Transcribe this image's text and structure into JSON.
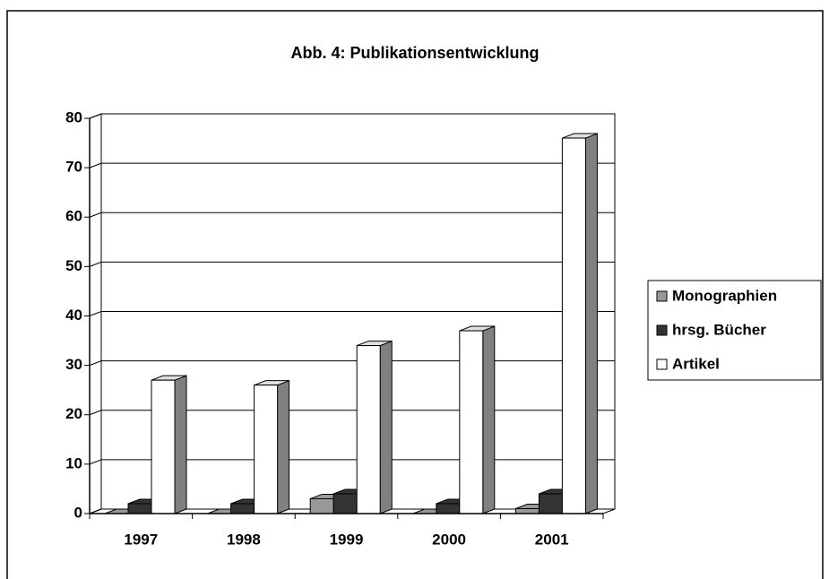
{
  "chart_data": {
    "type": "bar3d",
    "title": "Abb. 4: Publikationsentwicklung",
    "categories": [
      "1997",
      "1998",
      "1999",
      "2000",
      "2001"
    ],
    "series": [
      {
        "name": "Monographien",
        "color": "#999999",
        "values": [
          0,
          0,
          3,
          0,
          1
        ]
      },
      {
        "name": "hrsg. Bücher",
        "color": "#333333",
        "values": [
          2,
          2,
          4,
          2,
          4
        ]
      },
      {
        "name": "Artikel",
        "color": "#ffffff",
        "values": [
          27,
          26,
          34,
          37,
          76
        ]
      }
    ],
    "ylim": [
      0,
      80
    ],
    "yticks": [
      0,
      10,
      20,
      30,
      40,
      50,
      60,
      70,
      80
    ],
    "grid": true,
    "legend": "right"
  }
}
